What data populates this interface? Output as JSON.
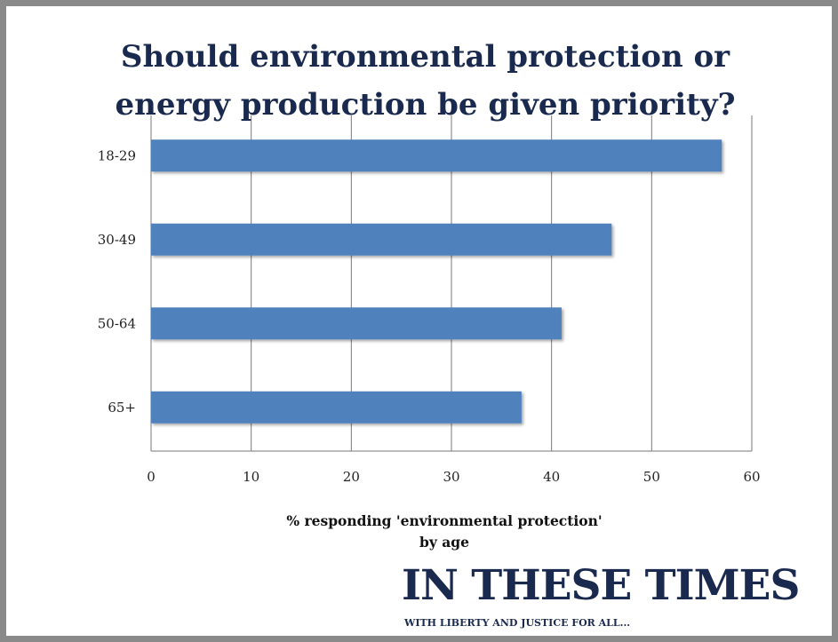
{
  "chart_data": {
    "type": "bar",
    "orientation": "horizontal",
    "title_lines": [
      "Should environmental protection or",
      "energy production be given priority?"
    ],
    "xlabel_lines": [
      "% responding 'environmental protection'",
      "by age"
    ],
    "categories": [
      "18-29",
      "30-49",
      "50-64",
      "65+"
    ],
    "values": [
      57,
      46,
      41,
      37
    ],
    "xlim": [
      0,
      60
    ],
    "xticks": [
      "0",
      "10",
      "20",
      "30",
      "40",
      "50",
      "60"
    ],
    "grid": true,
    "legend": "none",
    "bar_color": "#4f81bd"
  },
  "branding": {
    "logo_text": "IN THESE TIMES",
    "tagline": "WITH LIBERTY AND JUSTICE FOR ALL..."
  }
}
